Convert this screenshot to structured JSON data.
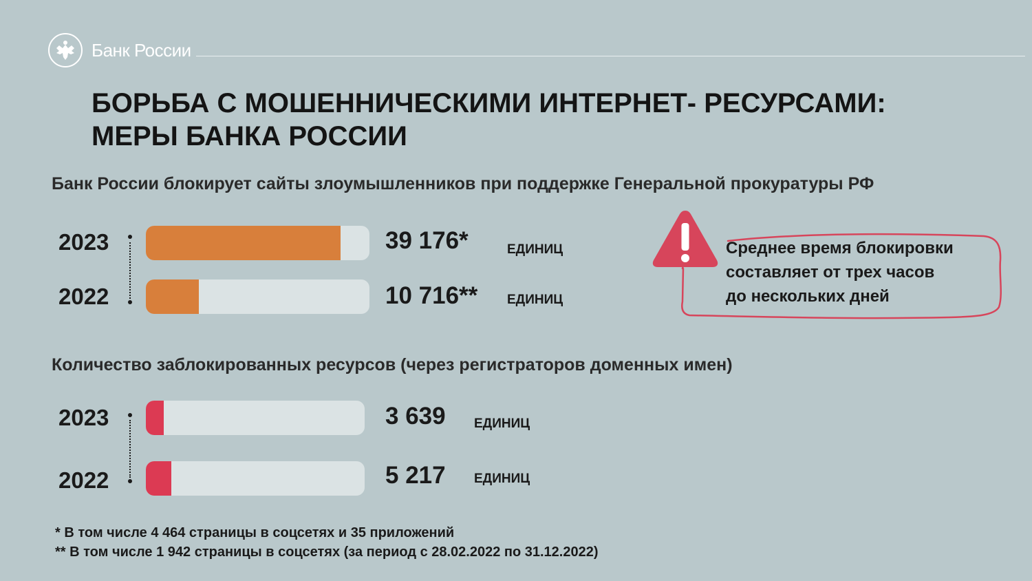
{
  "header": {
    "logo_text": "Банк России",
    "logo_icon": "eagle-emblem-icon"
  },
  "title": {
    "line1": "БОРЬБА С МОШЕННИЧЕСКИМИ ИНТЕРНЕТ- РЕСУРСАМИ:",
    "line2": "МЕРЫ БАНКА РОССИИ"
  },
  "callout": {
    "icon": "warning-triangle-icon",
    "line1": "Среднее время блокировки",
    "line2": "составляет от трех часов",
    "line3": "до нескольких дней",
    "accent_color": "#d7455b"
  },
  "colors": {
    "background": "#b9c8cb",
    "track": "#dbe3e4",
    "orange": "#d87f3b",
    "red": "#dc3a53"
  },
  "chart_data": [
    {
      "type": "bar",
      "title": "Банк России блокирует сайты злоумышленников при поддержке Генеральной прокуратуры РФ",
      "categories": [
        "2023",
        "2022"
      ],
      "values": [
        39176,
        10716
      ],
      "value_labels": [
        "39 176*",
        "10 716**"
      ],
      "unit": "ЕДИНИЦ",
      "color": "#d87f3b",
      "xlim": [
        0,
        45000
      ]
    },
    {
      "type": "bar",
      "title": "Количество заблокированных ресурсов (через регистраторов доменных имен)",
      "categories": [
        "2023",
        "2022"
      ],
      "values": [
        3639,
        5217
      ],
      "value_labels": [
        "3 639",
        "5 217"
      ],
      "unit": "ЕДИНИЦ",
      "color": "#dc3a53",
      "xlim": [
        0,
        45000
      ]
    }
  ],
  "footnotes": {
    "note1": "*  В том числе 4 464 страницы в соцсетях и 35 приложений",
    "note2": "** В том числе 1 942 страницы в соцсетях (за период с 28.02.2022 по 31.12.2022)"
  }
}
